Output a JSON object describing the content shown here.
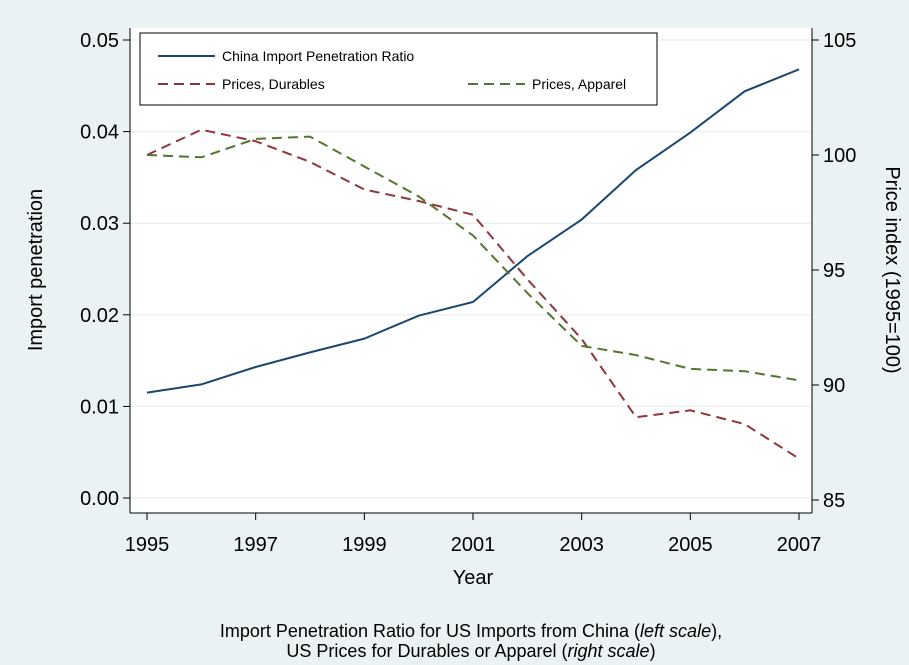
{
  "chart_data": {
    "type": "line",
    "x": [
      1995,
      1996,
      1997,
      1998,
      1999,
      2000,
      2001,
      2002,
      2003,
      2004,
      2005,
      2006,
      2007
    ],
    "series": [
      {
        "name": "China Import Penetration Ratio",
        "color": "#1a476f",
        "dash": false,
        "axis": "y",
        "values": [
          0.0115,
          0.0124,
          0.0143,
          0.0159,
          0.0174,
          0.0199,
          0.0214,
          0.0264,
          0.0304,
          0.0358,
          0.0399,
          0.0444,
          0.0468
        ]
      },
      {
        "name": "Prices, Durables",
        "color": "#90353b",
        "dash": true,
        "axis": "y2",
        "values": [
          100.0,
          101.1,
          100.6,
          99.7,
          98.5,
          98.0,
          97.4,
          94.6,
          92.0,
          88.6,
          88.9,
          88.3,
          86.8
        ]
      },
      {
        "name": "Prices, Apparel",
        "color": "#55752f",
        "dash": true,
        "axis": "y2",
        "values": [
          100.0,
          99.9,
          100.7,
          100.8,
          99.5,
          98.2,
          96.5,
          94.0,
          91.7,
          91.3,
          90.7,
          90.6,
          90.2
        ]
      }
    ],
    "xlabel": "Year",
    "ylabel": "Import penetration",
    "y2label": "Price index (1995=100)",
    "xlim": [
      1995,
      2007
    ],
    "xticks": [
      1995,
      1997,
      1999,
      2001,
      2003,
      2005,
      2007
    ],
    "ylim": [
      0,
      0.05
    ],
    "yticks": [
      {
        "value": 0,
        "label": "0.00"
      },
      0.01,
      0.02,
      0.03,
      0.04,
      0.05
    ],
    "y2lim": [
      85,
      105
    ],
    "y2ticks": [
      85,
      90,
      95,
      100,
      105
    ],
    "grid": true,
    "legend": "top-left",
    "note": [
      [
        "Import Penetration Ratio for US Imports from China (",
        "left scale",
        "),"
      ],
      [
        "US Prices for Durables or Apparel (",
        "right scale",
        ")"
      ]
    ]
  }
}
